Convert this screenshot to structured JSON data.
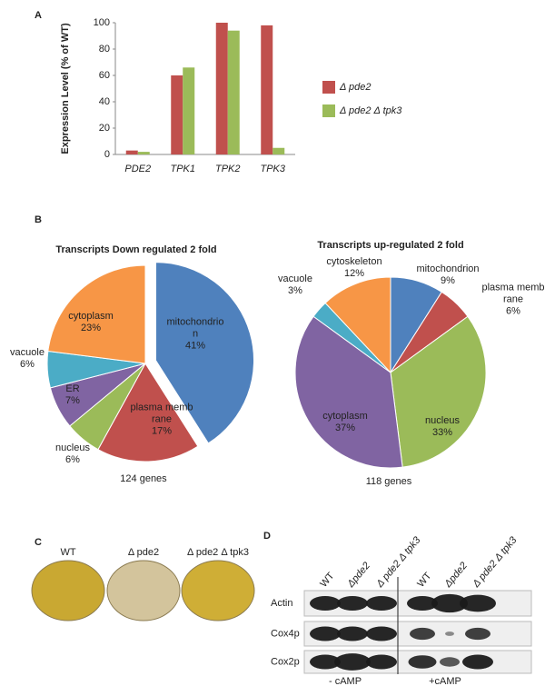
{
  "panel_labels": [
    "A",
    "B",
    "C",
    "D"
  ],
  "chart_data": [
    {
      "type": "bar",
      "y_label": "Expression Level (% of WT)",
      "categories": [
        "PDE2",
        "TPK1",
        "TPK2",
        "TPK3"
      ],
      "series": [
        {
          "name": "Δ pde2",
          "color": "#c0504d",
          "values": [
            3,
            60,
            100,
            98
          ]
        },
        {
          "name": "Δ pde2 Δ tpk3",
          "color": "#9bbb59",
          "values": [
            2,
            66,
            94,
            5
          ]
        }
      ],
      "ylim": [
        0,
        100
      ],
      "yticks": [
        0,
        20,
        40,
        60,
        80,
        100
      ],
      "legend": "right"
    },
    {
      "type": "pie",
      "title": "Transcripts Down regulated 2 fold",
      "note": "124 genes",
      "categories": [
        "mitochondrion",
        "plasma membrane",
        "nucleus",
        "ER",
        "vacuole",
        "cytoplasm"
      ],
      "values": [
        41,
        17,
        6,
        7,
        6,
        23
      ],
      "value_labels": [
        "41%",
        "17%",
        "6%",
        "7%",
        "6%",
        "23%"
      ],
      "colors": [
        "#4f81bd",
        "#c0504d",
        "#9bbb59",
        "#8064a2",
        "#4bacc6",
        "#f79646"
      ]
    },
    {
      "type": "pie",
      "title": "Transcripts up-regulated 2 fold",
      "note": "118 genes",
      "categories": [
        "mitochondrion",
        "plasma membrane",
        "nucleus",
        "cytoplasm",
        "vacuole",
        "cytoskeleton"
      ],
      "values": [
        9,
        6,
        33,
        37,
        3,
        12
      ],
      "value_labels": [
        "9%",
        "6%",
        "33%",
        "37%",
        "3%",
        "12%"
      ],
      "colors": [
        "#4f81bd",
        "#c0504d",
        "#9bbb59",
        "#8064a2",
        "#4bacc6",
        "#f79646"
      ]
    }
  ],
  "plates": {
    "labels": [
      "WT",
      "Δ pde2",
      "Δ pde2 Δ tpk3"
    ]
  },
  "blot": {
    "columns": [
      "WT",
      "Δpde2",
      "Δ pde2 Δ tpk3",
      "WT",
      "Δpde2",
      "Δ pde2 Δ tpk3"
    ],
    "rows": [
      "Actin",
      "Cox4p",
      "Cox2p"
    ],
    "conditions": [
      "- cAMP",
      "+cAMP"
    ]
  }
}
